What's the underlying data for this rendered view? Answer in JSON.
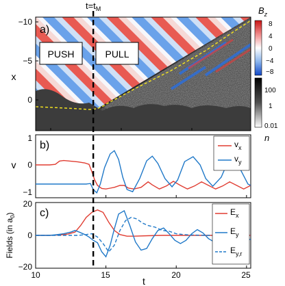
{
  "figure": {
    "marker_label": "t=t",
    "marker_label_sub": "M",
    "marker_t": 14.1,
    "colors": {
      "red": "#e03c31",
      "blue": "#1f78c8",
      "dashed_marker": "#000000",
      "yellow_line": "#f0e020"
    }
  },
  "panel_a": {
    "label": "a)",
    "ylabel": "x",
    "yticks": [
      "−10",
      "−5",
      "0"
    ],
    "push_label": "PUSH",
    "pull_label": "PULL",
    "colorbar_bz": {
      "title": "B",
      "title_sub": "z",
      "ticks": [
        "8",
        "4",
        "0",
        "−4",
        "−8"
      ]
    },
    "colorbar_n": {
      "title": "n",
      "ticks": [
        "100",
        "1",
        "0.01"
      ]
    }
  },
  "panel_b": {
    "label": "b)",
    "ylabel": "v",
    "yticks": [
      "1",
      "0",
      "−1"
    ],
    "legend": [
      {
        "name": "v",
        "sub": "x",
        "color": "#e03c31"
      },
      {
        "name": "v",
        "sub": "y",
        "color": "#1f78c8"
      }
    ]
  },
  "panel_c": {
    "label": "c)",
    "ylabel": "Fields (in a",
    "ylabel_sub": "0",
    "ylabel_end": ")",
    "yticks": [
      "20",
      "0",
      "−20"
    ],
    "xlabel": "t",
    "xticks": [
      "10",
      "15",
      "20",
      "25"
    ],
    "legend": [
      {
        "name": "E",
        "sub": "x",
        "color": "#e03c31",
        "dash": false
      },
      {
        "name": "E",
        "sub": "y",
        "color": "#1f78c8",
        "dash": false
      },
      {
        "name": "E",
        "sub": "y,r",
        "color": "#1f78c8",
        "dash": true
      }
    ]
  },
  "chart_data": [
    {
      "type": "line",
      "panel": "b",
      "ylabel": "v",
      "xlim": [
        10,
        25.3
      ],
      "ylim": [
        -1.2,
        1.1
      ],
      "series": [
        {
          "name": "vx",
          "x": [
            10,
            11,
            11.4,
            11.7,
            12,
            13,
            13.5,
            13.8,
            14,
            14.2,
            14.4,
            14.7,
            15,
            15.3,
            15.6,
            16,
            16.3,
            16.6,
            17,
            17.5,
            18,
            18.3,
            18.8,
            19.3,
            19.8,
            20.3,
            20.8,
            21.3,
            21.8,
            22.3,
            22.8,
            23.3,
            23.8,
            24.3,
            24.8,
            25.3
          ],
          "y": [
            0,
            0,
            0.02,
            0.14,
            0.16,
            0.11,
            0.07,
            0.02,
            -0.25,
            -0.55,
            -0.75,
            -0.86,
            -0.88,
            -0.85,
            -0.82,
            -0.75,
            -0.75,
            -0.85,
            -0.88,
            -0.82,
            -0.62,
            -0.73,
            -0.88,
            -0.77,
            -0.6,
            -0.75,
            -0.88,
            -0.77,
            -0.62,
            -0.75,
            -0.88,
            -0.77,
            -0.62,
            -0.75,
            -0.88,
            -0.75
          ]
        },
        {
          "name": "vy",
          "x": [
            10,
            12,
            13,
            13.6,
            13.9,
            14.1,
            14.35,
            14.6,
            14.9,
            15.3,
            15.6,
            15.9,
            16.2,
            16.5,
            16.9,
            17.4,
            17.9,
            18.3,
            18.7,
            19.2,
            19.7,
            20.1,
            20.6,
            21.2,
            21.7,
            22.1,
            22.6,
            23.2,
            23.7,
            24.1,
            24.6,
            25.1,
            25.3
          ],
          "y": [
            -0.7,
            -0.7,
            -0.7,
            -0.7,
            -0.68,
            -0.9,
            -1.02,
            -0.7,
            -0.1,
            0.4,
            0.52,
            0.2,
            -0.45,
            -0.9,
            -0.98,
            -0.5,
            0.15,
            0.32,
            0.05,
            -0.5,
            -0.8,
            -0.55,
            0.12,
            0.3,
            0.0,
            -0.5,
            -0.78,
            -0.45,
            0.15,
            0.28,
            -0.2,
            -0.7,
            -0.75
          ]
        }
      ]
    },
    {
      "type": "line",
      "panel": "c",
      "xlabel": "t",
      "xlim": [
        10,
        25.3
      ],
      "ylim": [
        -20,
        20
      ],
      "series": [
        {
          "name": "Ex",
          "x": [
            10,
            11,
            11.8,
            12.3,
            12.8,
            13.2,
            13.6,
            14,
            14.4,
            14.8,
            15.2,
            15.6,
            16,
            16.5,
            17,
            18,
            19,
            20,
            21,
            22,
            25.3
          ],
          "y": [
            0,
            0,
            0.3,
            0.8,
            2,
            6,
            11,
            14,
            15.5,
            14,
            8,
            3,
            0.5,
            -0.5,
            -0.5,
            -0.2,
            0,
            0,
            0,
            0,
            0
          ]
        },
        {
          "name": "Ey",
          "x": [
            10,
            11,
            11.5,
            12,
            12.5,
            12.8,
            13.1,
            13.5,
            13.8,
            14.1,
            14.4,
            14.7,
            15,
            15.3,
            15.6,
            15.9,
            16.3,
            16.7,
            17.1,
            17.5,
            17.9,
            18.3,
            18.7,
            19.1,
            19.5,
            19.9,
            20.3,
            20.7,
            21.1,
            21.5,
            21.9,
            22.3,
            22.7,
            23.1,
            23.5,
            23.9,
            24.3,
            24.7,
            25.3
          ],
          "y": [
            0,
            0,
            0.4,
            1,
            2,
            3,
            2,
            0.5,
            -1,
            -3,
            -4.5,
            -10,
            -13,
            -6,
            4,
            13,
            15,
            6,
            -4,
            -9,
            -8,
            -2,
            3,
            4.5,
            1,
            -3,
            -5,
            -3,
            1,
            3.5,
            1.5,
            -2,
            -4,
            -2,
            1.5,
            3,
            1,
            -2,
            -2.5
          ]
        },
        {
          "name": "Ey,r",
          "x": [
            10,
            12,
            13,
            13.6,
            14,
            14.4,
            14.8,
            15.2,
            15.6,
            16,
            16.4,
            16.8,
            17.2,
            17.6,
            18,
            18.5,
            19,
            19.5,
            20,
            20.5,
            21,
            22,
            23,
            24,
            25.3
          ],
          "y": [
            0,
            0,
            0,
            0.5,
            1,
            -1,
            -5,
            -10,
            -6,
            3,
            9,
            11,
            10,
            7.5,
            6,
            5,
            3,
            2.5,
            1,
            0.5,
            0.3,
            0,
            0,
            0,
            0
          ]
        }
      ]
    }
  ]
}
